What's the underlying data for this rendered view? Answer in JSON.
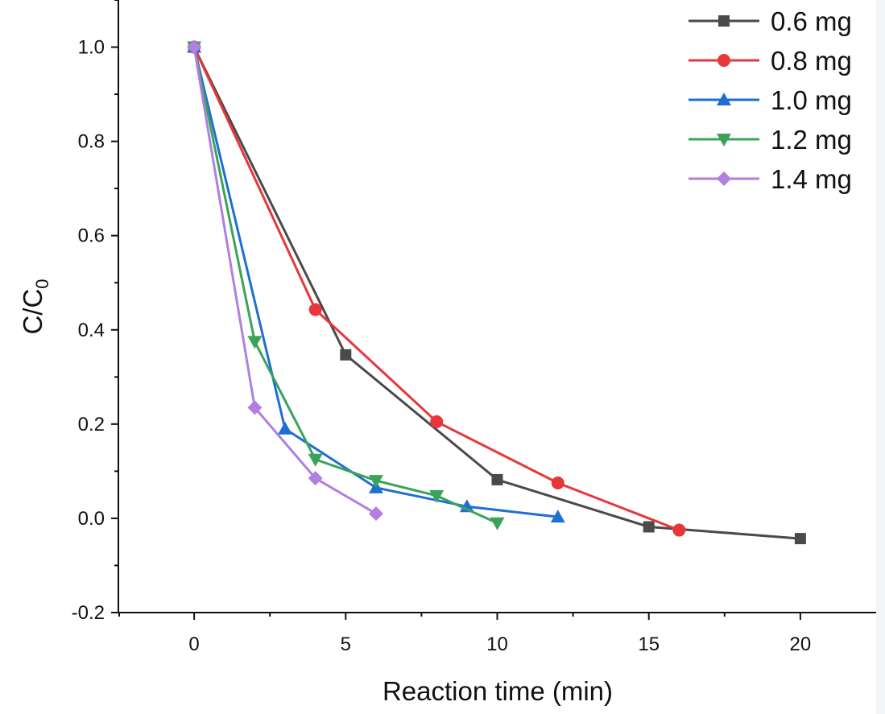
{
  "chart_data": {
    "type": "line",
    "xlabel": "Reaction time (min)",
    "ylabel": {
      "main": "C/C",
      "subscript": "0"
    },
    "xlim": [
      -2.5,
      22.5
    ],
    "ylim": [
      -0.2,
      1.1
    ],
    "xticks": [
      0,
      5,
      10,
      15,
      20
    ],
    "xtick_labels": [
      "0",
      "5",
      "10",
      "15",
      "20"
    ],
    "yticks": [
      -0.2,
      0.0,
      0.2,
      0.4,
      0.6,
      0.8,
      1.0
    ],
    "ytick_labels": [
      "-0.2",
      "0.0",
      "0.2",
      "0.4",
      "0.6",
      "0.8",
      "1.0"
    ],
    "grid": false,
    "legend_position": "top-right",
    "series": [
      {
        "name": "0.6 mg",
        "color": "#4a4a4a",
        "marker": "square",
        "x": [
          0,
          5,
          10,
          15,
          20
        ],
        "y": [
          1.0,
          0.347,
          0.082,
          -0.018,
          -0.043
        ]
      },
      {
        "name": "0.8 mg",
        "color": "#e8363a",
        "marker": "circle",
        "x": [
          0,
          4,
          8,
          12,
          16
        ],
        "y": [
          1.0,
          0.443,
          0.205,
          0.075,
          -0.025
        ]
      },
      {
        "name": "1.0 mg",
        "color": "#1f6fd1",
        "marker": "triangle-up",
        "x": [
          0,
          3,
          6,
          9,
          12
        ],
        "y": [
          1.0,
          0.19,
          0.065,
          0.025,
          0.003
        ]
      },
      {
        "name": "1.2 mg",
        "color": "#3aa35a",
        "marker": "triangle-down",
        "x": [
          0,
          2,
          4,
          6,
          8,
          10
        ],
        "y": [
          1.0,
          0.375,
          0.125,
          0.08,
          0.048,
          -0.01
        ]
      },
      {
        "name": "1.4 mg",
        "color": "#b07fe0",
        "marker": "diamond",
        "x": [
          0,
          2,
          4,
          6
        ],
        "y": [
          1.0,
          0.235,
          0.085,
          0.01
        ]
      }
    ]
  }
}
